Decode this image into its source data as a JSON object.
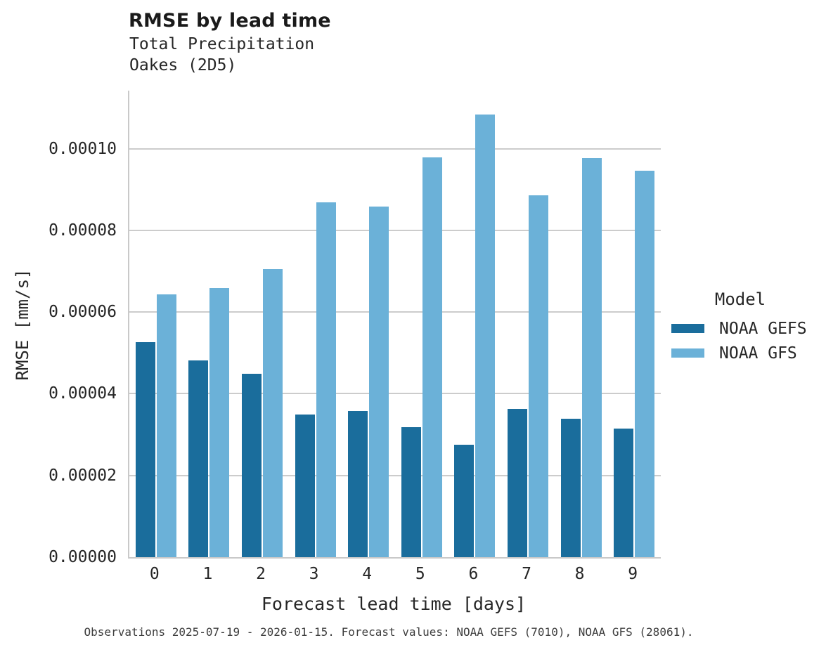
{
  "header": {
    "title": "RMSE by lead time",
    "subtitle_line1": "Total Precipitation",
    "subtitle_line2": "Oakes (2D5)"
  },
  "legend": {
    "title": "Model",
    "items": [
      {
        "label": "NOAA GEFS",
        "color": "#1a6d9c"
      },
      {
        "label": "NOAA GFS",
        "color": "#6bb1d8"
      }
    ]
  },
  "caption": "Observations 2025-07-19 - 2026-01-15. Forecast values: NOAA GEFS (7010), NOAA GFS (28061).",
  "colors": {
    "gefs_bar": "#1a6d9c",
    "gfs_bar": "#6bb1d8",
    "gridline": "#cccccc",
    "spine": "#c9c9c9",
    "text": "#262626",
    "caption_text": "#3d3d3d"
  },
  "chart_data": {
    "type": "bar",
    "title": "RMSE by lead time",
    "subtitle": [
      "Total Precipitation",
      "Oakes (2D5)"
    ],
    "xlabel": "Forecast lead time [days]",
    "ylabel": "RMSE [mm/s]",
    "categories": [
      "0",
      "1",
      "2",
      "3",
      "4",
      "5",
      "6",
      "7",
      "8",
      "9"
    ],
    "series": [
      {
        "name": "NOAA GEFS",
        "color": "#1a6d9c",
        "values": [
          5.27e-05,
          4.81e-05,
          4.49e-05,
          3.5e-05,
          3.58e-05,
          3.19e-05,
          2.76e-05,
          3.63e-05,
          3.39e-05,
          3.14e-05
        ]
      },
      {
        "name": "NOAA GFS",
        "color": "#6bb1d8",
        "values": [
          6.44e-05,
          6.59e-05,
          7.06e-05,
          8.68e-05,
          8.59e-05,
          9.78e-05,
          0.0001084,
          8.85e-05,
          9.77e-05,
          9.46e-05
        ]
      }
    ],
    "y_ticks": {
      "labels": [
        "0.00000",
        "0.00002",
        "0.00004",
        "0.00006",
        "0.00008",
        "0.00010"
      ],
      "values": [
        0.0,
        2e-05,
        4e-05,
        6e-05,
        8e-05,
        0.0001
      ]
    },
    "ylim": [
      0,
      0.0001142
    ],
    "grid": true,
    "legend_position": "right",
    "legend_title": "Model"
  }
}
